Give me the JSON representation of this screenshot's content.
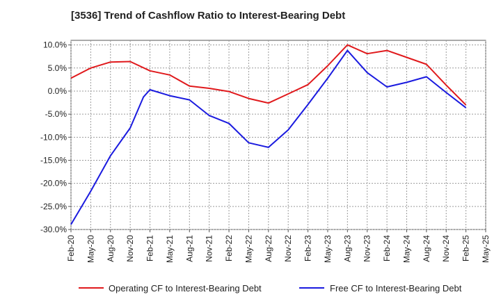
{
  "chart_data": {
    "type": "line",
    "title": "[3536]  Trend of Cashflow Ratio to Interest-Bearing Debt",
    "xlabel": "",
    "ylabel": "",
    "x_tick_labels": [
      "Feb-20",
      "May-20",
      "Aug-20",
      "Nov-20",
      "Feb-21",
      "May-21",
      "Aug-21",
      "Nov-21",
      "Feb-22",
      "May-22",
      "Aug-22",
      "Nov-22",
      "Feb-23",
      "May-23",
      "Aug-23",
      "Nov-23",
      "Feb-24",
      "May-24",
      "Aug-24",
      "Nov-24",
      "Feb-25",
      "May-25"
    ],
    "y_tick_labels": [
      "10.0%",
      "5.0%",
      "0.0%",
      "-5.0%",
      "-10.0%",
      "-15.0%",
      "-20.0%",
      "-25.0%",
      "-30.0%"
    ],
    "y_ticks": [
      10,
      5,
      0,
      -5,
      -10,
      -15,
      -20,
      -25,
      -30
    ],
    "ylim": [
      -30,
      11
    ],
    "grid": true,
    "legend_position": "bottom",
    "colors": {
      "operating": "#e0191c",
      "free": "#1a1adf"
    },
    "series": [
      {
        "name": "Operating CF to Interest-Bearing Debt",
        "key": "operating",
        "points": [
          [
            "Feb-20",
            2.8
          ],
          [
            "May-20",
            5.0
          ],
          [
            "Aug-20",
            6.3
          ],
          [
            "Nov-20",
            6.4
          ],
          [
            "Feb-21",
            4.4
          ],
          [
            "May-21",
            3.5
          ],
          [
            "Aug-21",
            1.1
          ],
          [
            "Nov-21",
            0.6
          ],
          [
            "Feb-22",
            -0.1
          ],
          [
            "May-22",
            -1.6
          ],
          [
            "Aug-22",
            -2.6
          ],
          [
            "Nov-22",
            -0.6
          ],
          [
            "Feb-23",
            1.4
          ],
          [
            "May-23",
            5.5
          ],
          [
            "Aug-23",
            10.0
          ],
          [
            "Nov-23",
            8.1
          ],
          [
            "Feb-24",
            8.8
          ],
          [
            "May-24",
            7.3
          ],
          [
            "Aug-24",
            5.8
          ],
          [
            "Nov-24",
            1.3
          ],
          [
            "Feb-25",
            -3.0
          ]
        ]
      },
      {
        "name": "Free CF to Interest-Bearing Debt",
        "key": "free",
        "points": [
          [
            "Feb-20",
            -28.9
          ],
          [
            "May-20",
            -21.7
          ],
          [
            "Aug-20",
            -14.0
          ],
          [
            "Nov-20",
            -8.0
          ],
          [
            "Jan-21",
            -1.3
          ],
          [
            "Feb-21",
            0.3
          ],
          [
            "May-21",
            -1.0
          ],
          [
            "Aug-21",
            -1.9
          ],
          [
            "Nov-21",
            -5.3
          ],
          [
            "Feb-22",
            -7.0
          ],
          [
            "May-22",
            -11.2
          ],
          [
            "Aug-22",
            -12.2
          ],
          [
            "Nov-22",
            -8.4
          ],
          [
            "Feb-23",
            -2.9
          ],
          [
            "May-23",
            2.8
          ],
          [
            "Aug-23",
            8.8
          ],
          [
            "Nov-23",
            4.0
          ],
          [
            "Feb-24",
            0.9
          ],
          [
            "May-24",
            1.9
          ],
          [
            "Aug-24",
            3.1
          ],
          [
            "Nov-24",
            -0.3
          ],
          [
            "Feb-25",
            -3.6
          ]
        ]
      }
    ]
  }
}
